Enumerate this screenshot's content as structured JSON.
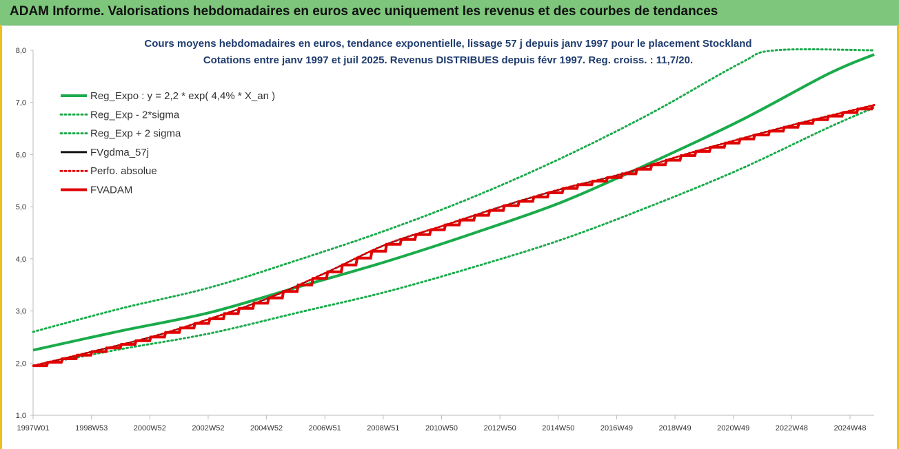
{
  "window": {
    "title": "ADAM Informe. Valorisations hebdomadaires en euros avec uniquement les revenus et des courbes de tendances"
  },
  "chart_data": {
    "type": "line",
    "title": "Cours moyens hebdomadaires en euros, tendance exponentielle, lissage 57 j depuis janv 1997 pour le placement Stockland",
    "subtitle": "Cotations entre janv 1997 et juil 2025. Revenus DISTRIBUES depuis févr 1997. Reg. croiss. : 11,7/20.",
    "x_tick_labels": [
      "1997W01",
      "1998W53",
      "2000W52",
      "2002W52",
      "2004W52",
      "2006W51",
      "2008W51",
      "2010W50",
      "2012W50",
      "2014W50",
      "2016W49",
      "2018W49",
      "2020W49",
      "2022W48",
      "2024W48"
    ],
    "y_tick_labels": [
      "1,0",
      "2,0",
      "3,0",
      "4,0",
      "5,0",
      "6,0",
      "7,0",
      "8,0"
    ],
    "ylim": [
      1,
      8
    ],
    "xlim_years": [
      1997.0,
      2025.55
    ],
    "grid": false,
    "legend_position": "top-left",
    "series": [
      {
        "name": "Reg_Expo : y = 2,2 * exp( 4,4% *  X_an )",
        "color": "#1aab4b",
        "style": "solid",
        "x": [
          1997,
          2000,
          2003,
          2006,
          2009,
          2012,
          2015,
          2018,
          2021,
          2024,
          2025.55
        ],
        "values": [
          2.25,
          2.62,
          2.97,
          3.46,
          3.95,
          4.5,
          5.1,
          5.85,
          6.65,
          7.55,
          7.92
        ]
      },
      {
        "name": "Reg_Exp - 2*sigma",
        "color": "#1aab4b",
        "style": "dotted",
        "x": [
          1997,
          2000,
          2003,
          2006,
          2009,
          2012,
          2015,
          2018,
          2021,
          2024,
          2025.55
        ],
        "values": [
          1.95,
          2.27,
          2.57,
          2.97,
          3.37,
          3.85,
          4.38,
          5.02,
          5.72,
          6.52,
          6.9
        ]
      },
      {
        "name": "Reg_Exp + 2 sigma",
        "color": "#1aab4b",
        "style": "dotted",
        "x": [
          1997,
          2000,
          2003,
          2006,
          2009,
          2012,
          2015,
          2018,
          2021,
          2022.2,
          2025.55
        ],
        "values": [
          2.6,
          3.05,
          3.45,
          3.98,
          4.55,
          5.2,
          5.95,
          6.8,
          7.75,
          8.0,
          8.0
        ]
      },
      {
        "name": "FVgdma_57j",
        "color": "#111111",
        "style": "solid",
        "x": [
          1997,
          1999,
          2001,
          2003,
          2005,
          2007,
          2009,
          2011,
          2013,
          2015,
          2017,
          2019,
          2021,
          2023,
          2025.55
        ],
        "values": [
          1.95,
          2.22,
          2.5,
          2.85,
          3.25,
          3.75,
          4.28,
          4.65,
          5.02,
          5.35,
          5.63,
          5.98,
          6.3,
          6.6,
          6.95
        ]
      },
      {
        "name": "Perfo. absolue",
        "color": "#e00000",
        "style": "dotted",
        "x": [
          1997,
          1999,
          2001,
          2003,
          2005,
          2007,
          2009,
          2011,
          2013,
          2015,
          2017,
          2019,
          2021,
          2023,
          2025.55
        ],
        "values": [
          1.95,
          2.22,
          2.5,
          2.85,
          3.25,
          3.75,
          4.28,
          4.65,
          5.02,
          5.35,
          5.63,
          5.98,
          6.3,
          6.6,
          6.95
        ]
      },
      {
        "name": "FVADAM",
        "color": "#e00000",
        "style": "stepped",
        "x": [
          1997,
          1999,
          2001,
          2003,
          2005,
          2007,
          2009,
          2011,
          2013,
          2015,
          2017,
          2019,
          2021,
          2023,
          2025.55
        ],
        "values": [
          1.95,
          2.22,
          2.5,
          2.85,
          3.25,
          3.75,
          4.28,
          4.65,
          5.02,
          5.35,
          5.63,
          5.98,
          6.3,
          6.6,
          6.95
        ]
      }
    ]
  }
}
